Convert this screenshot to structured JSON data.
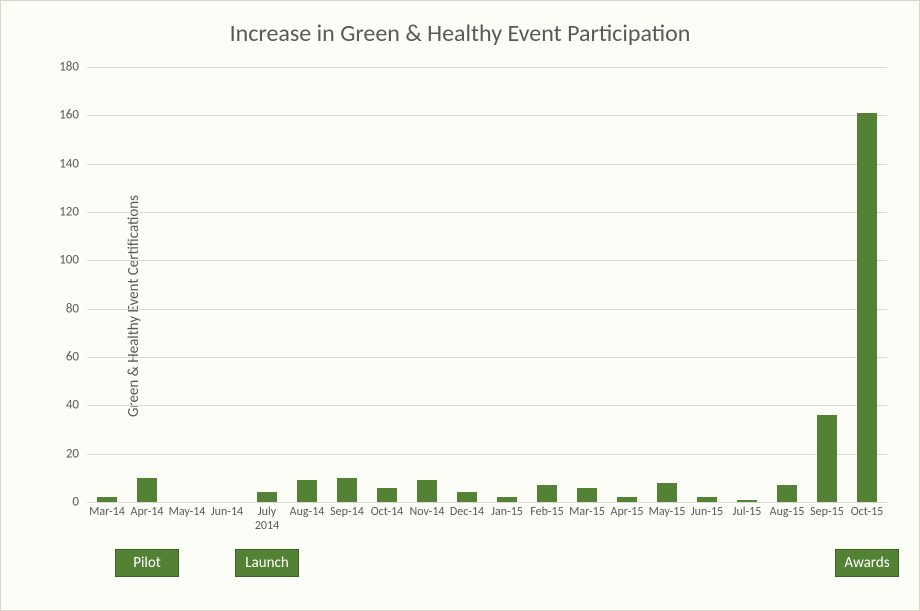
{
  "chart": {
    "type": "bar",
    "title": "Increase in Green & Healthy Event Participation",
    "title_fontsize": 24,
    "title_color": "#595959",
    "ylabel": "Green & Healthy Event Certifications",
    "ylabel_fontsize": 15,
    "xlabel_fontsize": 12,
    "ytick_fontsize": 13,
    "label_color": "#595959",
    "background_color": "#fdfdf8",
    "border_color": "#d9d6c9",
    "grid_color": "#d9d9d9",
    "bar_color": "#548235",
    "bar_width": 0.48,
    "ylim": [
      0,
      180
    ],
    "ytick_step": 20,
    "yticks": [
      0,
      20,
      40,
      60,
      80,
      100,
      120,
      140,
      160,
      180
    ],
    "categories": [
      "Mar-14",
      "Apr-14",
      "May-14",
      "Jun-14",
      "July\n2014",
      "Aug-14",
      "Sep-14",
      "Oct-14",
      "Nov-14",
      "Dec-14",
      "Jan-15",
      "Feb-15",
      "Mar-15",
      "Apr-15",
      "May-15",
      "Jun-15",
      "Jul-15",
      "Aug-15",
      "Sep-15",
      "Oct-15"
    ],
    "values": [
      2,
      10,
      0,
      0,
      4,
      9,
      10,
      6,
      9,
      4,
      2,
      7,
      6,
      2,
      8,
      2,
      1,
      7,
      36,
      161
    ],
    "annotations": [
      {
        "label": "Pilot",
        "anchor_index": 1,
        "span": 1.6
      },
      {
        "label": "Launch",
        "anchor_index": 4,
        "span": 1.6
      },
      {
        "label": "Awards",
        "anchor_index": 19,
        "span": 1.6
      }
    ],
    "annotation_bg": "#548235",
    "annotation_text_color": "#ffffff",
    "annotation_fontsize": 15
  }
}
